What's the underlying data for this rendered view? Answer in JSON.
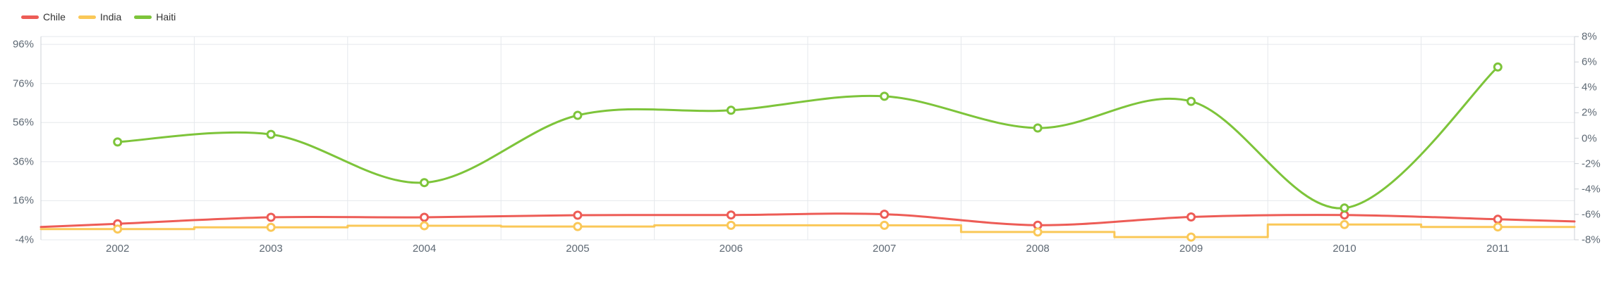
{
  "chart_data": {
    "type": "line",
    "title": "",
    "categories": [
      "2002",
      "2003",
      "2004",
      "2005",
      "2006",
      "2007",
      "2008",
      "2009",
      "2010",
      "2011"
    ],
    "series": [
      {
        "name": "Chile",
        "color": "#ed5c56",
        "axis": "left",
        "line_style": "smooth",
        "extend_to_edges": true,
        "values": [
          4.2,
          7.5,
          7.5,
          8.6,
          8.7,
          9.1,
          3.5,
          7.7,
          8.7,
          6.5
        ]
      },
      {
        "name": "India",
        "color": "#fac858",
        "axis": "left",
        "line_style": "step-middle",
        "extend_to_edges": true,
        "values": [
          1.5,
          2.4,
          3.2,
          2.8,
          3.4,
          3.4,
          0.0,
          -2.6,
          3.8,
          2.6
        ]
      },
      {
        "name": "Haiti",
        "color": "#7dc43a",
        "axis": "right",
        "line_style": "smooth",
        "extend_to_edges": false,
        "values": [
          -0.3,
          0.3,
          -3.5,
          1.8,
          2.2,
          3.3,
          0.8,
          2.9,
          -5.5,
          5.6
        ]
      }
    ],
    "left_axis": {
      "labels": [
        "96%",
        "76%",
        "56%",
        "36%",
        "16%",
        "-4%"
      ],
      "label_values": [
        96,
        76,
        56,
        36,
        16,
        -4
      ],
      "min": -4,
      "max": 100
    },
    "right_axis": {
      "labels": [
        "8%",
        "6%",
        "4%",
        "2%",
        "0%",
        "-2%",
        "-4%",
        "-6%",
        "-8%"
      ],
      "label_values": [
        8,
        6,
        4,
        2,
        0,
        -2,
        -4,
        -6,
        -8
      ],
      "min": -8,
      "max": 8
    },
    "xlabel": "",
    "ylabel": "",
    "legend_position": "top-left",
    "grid": true,
    "marker": "hollow-circle",
    "background": "#ffffff",
    "grid_color": "#e5e8ec",
    "axis_line_color": "#ccd1d7"
  }
}
